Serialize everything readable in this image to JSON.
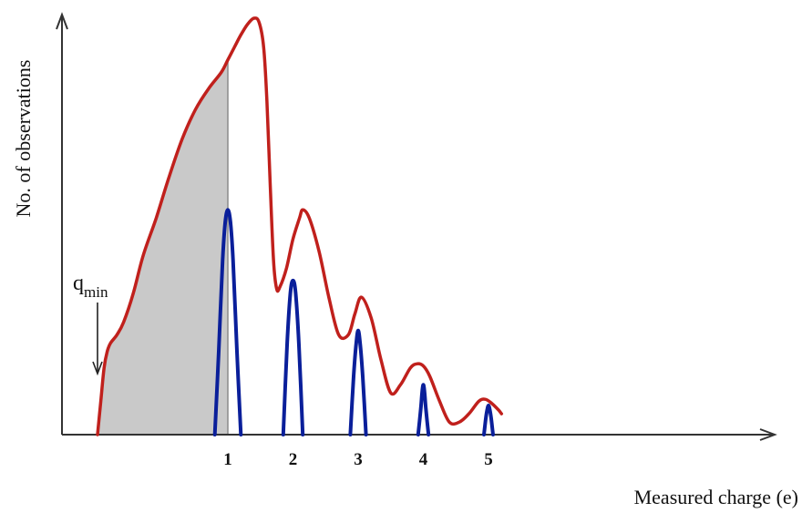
{
  "chart_data": {
    "type": "line",
    "title": "",
    "xlabel": "Measured charge (e)",
    "ylabel": "No. of observations",
    "xlim": [
      -1.35,
      5.25
    ],
    "ylim": [
      0,
      1.0
    ],
    "x_ticks": [
      "1",
      "2",
      "3",
      "4",
      "5"
    ],
    "grid": false,
    "legend": "none",
    "annotation": {
      "text": "q",
      "subscript": "min",
      "x": -1.0
    },
    "shaded_region": {
      "from": -1.0,
      "to": 1.0,
      "color": "#c9c9c9"
    },
    "colors": {
      "total": "#c0201c",
      "peaks": "#0a1f9a",
      "axis": "#333333",
      "shade": "#c9c9c9"
    },
    "series": [
      {
        "x": [
          -1.0,
          -0.95,
          -0.9,
          -0.85,
          -0.8,
          -0.7,
          -0.6,
          -0.45,
          -0.3,
          -0.1,
          0.1,
          0.3,
          0.5,
          0.7,
          0.9,
          1.0,
          1.1,
          1.2,
          1.3,
          1.4,
          1.48,
          1.55,
          1.6,
          1.65,
          1.7,
          1.75,
          1.8,
          1.9,
          2.0,
          2.1,
          2.15,
          2.25,
          2.4,
          2.55,
          2.7,
          2.85,
          2.95,
          3.05,
          3.2,
          3.35,
          3.5,
          3.65,
          3.8,
          3.9,
          4.0,
          4.1,
          4.25,
          4.4,
          4.55,
          4.7,
          4.85,
          4.95,
          5.05,
          5.15,
          5.2
        ],
        "values": [
          0.0,
          0.08,
          0.16,
          0.2,
          0.22,
          0.24,
          0.27,
          0.34,
          0.43,
          0.52,
          0.62,
          0.71,
          0.78,
          0.83,
          0.87,
          0.9,
          0.93,
          0.96,
          0.985,
          1.0,
          0.99,
          0.93,
          0.8,
          0.6,
          0.42,
          0.35,
          0.355,
          0.4,
          0.47,
          0.52,
          0.54,
          0.52,
          0.44,
          0.33,
          0.24,
          0.24,
          0.29,
          0.33,
          0.28,
          0.18,
          0.1,
          0.12,
          0.16,
          0.17,
          0.165,
          0.14,
          0.08,
          0.03,
          0.03,
          0.05,
          0.08,
          0.085,
          0.075,
          0.06,
          0.05
        ]
      },
      {
        "x": [
          0.8,
          0.86,
          0.92,
          0.96,
          1.0,
          1.04,
          1.08,
          1.14,
          1.2
        ],
        "values": [
          0.0,
          0.2,
          0.42,
          0.51,
          0.54,
          0.51,
          0.42,
          0.2,
          0.0
        ]
      },
      {
        "x": [
          1.85,
          1.91,
          1.96,
          2.0,
          2.04,
          2.09,
          2.15
        ],
        "values": [
          0.0,
          0.22,
          0.34,
          0.37,
          0.34,
          0.22,
          0.0
        ]
      },
      {
        "x": [
          2.88,
          2.93,
          2.97,
          3.0,
          3.03,
          3.07,
          3.12
        ],
        "values": [
          0.0,
          0.14,
          0.22,
          0.25,
          0.22,
          0.14,
          0.0
        ]
      },
      {
        "x": [
          3.92,
          3.96,
          3.98,
          4.0,
          4.02,
          4.04,
          4.08
        ],
        "values": [
          0.0,
          0.06,
          0.1,
          0.12,
          0.1,
          0.06,
          0.0
        ]
      },
      {
        "x": [
          4.93,
          4.96,
          4.98,
          5.0,
          5.02,
          5.04,
          5.07
        ],
        "values": [
          0.0,
          0.04,
          0.06,
          0.07,
          0.06,
          0.04,
          0.0
        ]
      }
    ]
  }
}
